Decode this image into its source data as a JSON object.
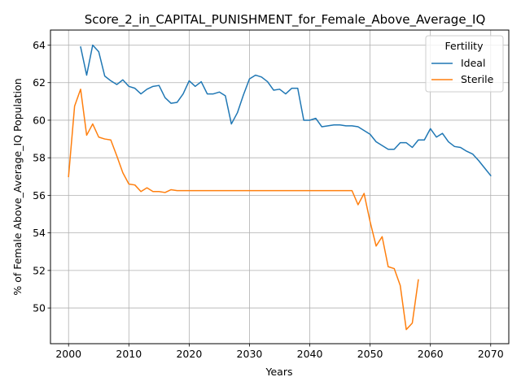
{
  "chart_data": {
    "type": "line",
    "title": "Score_2_in_CAPITAL_PUNISHMENT_for_Female_Above_Average_IQ",
    "xlabel": "Years",
    "ylabel": "% of Female Above_Average_IQ Population",
    "xlim": [
      1997,
      2073
    ],
    "ylim": [
      48.1,
      64.8
    ],
    "xticks": [
      2000,
      2010,
      2020,
      2030,
      2040,
      2050,
      2060,
      2070
    ],
    "yticks": [
      50,
      52,
      54,
      56,
      58,
      60,
      62,
      64
    ],
    "grid": true,
    "legend": {
      "title": "Fertility",
      "placement": "top-right"
    },
    "series": [
      {
        "name": "Ideal",
        "color": "#1f77b4",
        "x": [
          2002,
          2003,
          2004,
          2005,
          2006,
          2007,
          2008,
          2009,
          2010,
          2011,
          2012,
          2013,
          2014,
          2015,
          2016,
          2017,
          2018,
          2019,
          2020,
          2021,
          2022,
          2023,
          2024,
          2025,
          2026,
          2027,
          2028,
          2029,
          2030,
          2031,
          2032,
          2033,
          2034,
          2035,
          2036,
          2037,
          2038,
          2039,
          2040,
          2041,
          2042,
          2043,
          2044,
          2045,
          2046,
          2047,
          2048,
          2049,
          2050,
          2051,
          2052,
          2053,
          2054,
          2055,
          2056,
          2057,
          2058,
          2059,
          2060,
          2061,
          2062,
          2063,
          2064,
          2065,
          2066,
          2067,
          2068,
          2069,
          2070
        ],
        "y": [
          63.9,
          62.4,
          64.0,
          63.65,
          62.35,
          62.1,
          61.9,
          62.15,
          61.8,
          61.7,
          61.4,
          61.65,
          61.8,
          61.85,
          61.2,
          60.9,
          60.95,
          61.4,
          62.1,
          61.8,
          62.05,
          61.4,
          61.4,
          61.5,
          61.3,
          59.8,
          60.4,
          61.35,
          62.2,
          62.4,
          62.3,
          62.05,
          61.6,
          61.65,
          61.4,
          61.7,
          61.7,
          60.0,
          60.0,
          60.1,
          59.65,
          59.7,
          59.75,
          59.75,
          59.7,
          59.7,
          59.65,
          59.45,
          59.25,
          58.85,
          58.65,
          58.45,
          58.45,
          58.8,
          58.8,
          58.55,
          58.95,
          58.95,
          59.55,
          59.1,
          59.3,
          58.85,
          58.6,
          58.55,
          58.35,
          58.2,
          57.85,
          57.45,
          57.05
        ]
      },
      {
        "name": "Sterile",
        "color": "#ff7f0e",
        "x": [
          2000,
          2001,
          2002,
          2003,
          2004,
          2005,
          2006,
          2007,
          2008,
          2009,
          2010,
          2011,
          2012,
          2013,
          2014,
          2015,
          2016,
          2017,
          2018,
          2019,
          2020,
          2021,
          2022,
          2023,
          2024,
          2025,
          2026,
          2027,
          2028,
          2029,
          2030,
          2031,
          2032,
          2033,
          2034,
          2035,
          2036,
          2037,
          2038,
          2039,
          2040,
          2041,
          2042,
          2043,
          2044,
          2045,
          2046,
          2047,
          2048,
          2049,
          2050,
          2051,
          2052,
          2053,
          2054,
          2055,
          2056,
          2057,
          2058
        ],
        "y": [
          57.0,
          60.75,
          61.65,
          59.2,
          59.8,
          59.1,
          59.0,
          58.95,
          58.1,
          57.2,
          56.6,
          56.55,
          56.2,
          56.4,
          56.2,
          56.2,
          56.15,
          56.3,
          56.25,
          56.25,
          56.25,
          56.25,
          56.25,
          56.25,
          56.25,
          56.25,
          56.25,
          56.25,
          56.25,
          56.25,
          56.25,
          56.25,
          56.25,
          56.25,
          56.25,
          56.25,
          56.25,
          56.25,
          56.25,
          56.25,
          56.25,
          56.25,
          56.25,
          56.25,
          56.25,
          56.25,
          56.25,
          56.25,
          55.5,
          56.1,
          54.6,
          53.3,
          53.8,
          52.2,
          52.1,
          51.2,
          48.85,
          49.2,
          51.5
        ]
      }
    ]
  }
}
